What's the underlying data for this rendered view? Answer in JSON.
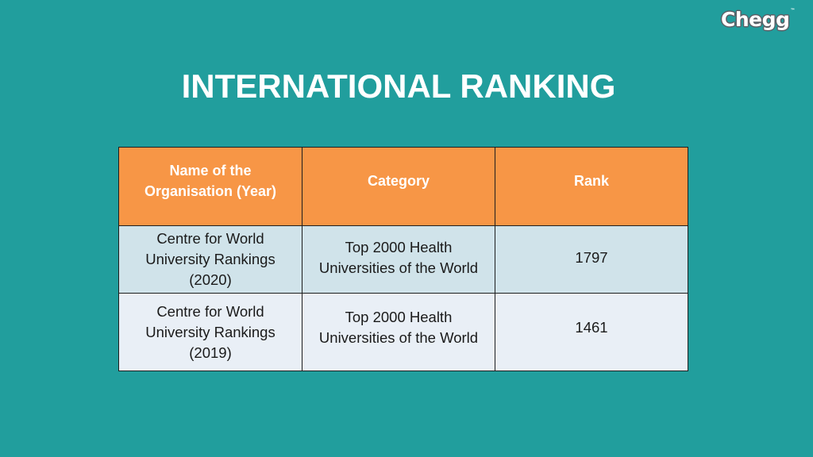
{
  "logo": {
    "text": "Chegg",
    "trademark": "™"
  },
  "title": "INTERNATIONAL RANKING",
  "table": {
    "headers": [
      "Name of the Organisation (Year)",
      "Category",
      "Rank"
    ],
    "rows": [
      {
        "organisation": "Centre for World University Rankings (2020)",
        "category": "Top 2000 Health Universities of the World",
        "rank": "1797"
      },
      {
        "organisation": "Centre for World University Rankings (2019)",
        "category": "Top 2000 Health Universities of the World",
        "rank": "1461"
      }
    ]
  },
  "colors": {
    "background": "#219e9d",
    "header_fill": "#f79646",
    "row_1_fill": "#d0e3ea",
    "row_2_fill": "#e9eff6"
  }
}
